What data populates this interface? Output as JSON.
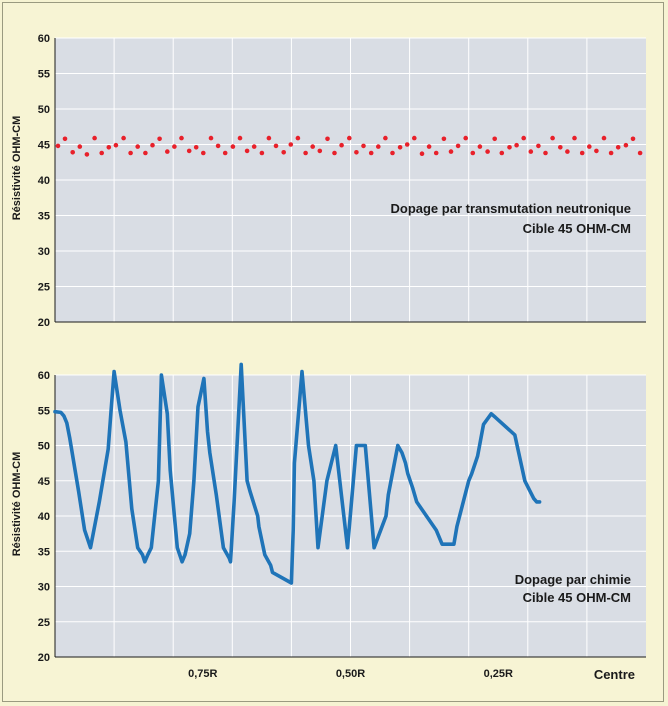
{
  "colors": {
    "panel_bg": "#d9dde4",
    "grid": "#ffffff",
    "neutron_series": "#e8202a",
    "chemistry_series": "#1f74b8",
    "page_bg": "#f6f3d2"
  },
  "chart_data": [
    {
      "type": "scatter",
      "title": "",
      "ylabel": "Résistivité OHM-CM",
      "ylim": [
        20,
        60
      ],
      "yticks": [
        20,
        25,
        30,
        35,
        40,
        45,
        50,
        55,
        60
      ],
      "xlim": [
        1.0,
        0.0
      ],
      "grid": true,
      "annotation": [
        "Dopage par transmutation neutronique",
        "Cible 45 OHM-CM"
      ],
      "annotation_position": "middle-right",
      "series": [
        {
          "x": [
            0.995,
            0.983,
            0.97,
            0.958,
            0.946,
            0.933,
            0.921,
            0.909,
            0.897,
            0.884,
            0.872,
            0.86,
            0.847,
            0.835,
            0.823,
            0.81,
            0.798,
            0.786,
            0.773,
            0.761,
            0.749,
            0.736,
            0.724,
            0.712,
            0.699,
            0.687,
            0.675,
            0.663,
            0.65,
            0.638,
            0.626,
            0.613,
            0.601,
            0.589,
            0.576,
            0.564,
            0.552,
            0.539,
            0.527,
            0.515,
            0.502,
            0.49,
            0.478,
            0.465,
            0.453,
            0.441,
            0.429,
            0.416,
            0.404,
            0.392,
            0.379,
            0.367,
            0.355,
            0.342,
            0.33,
            0.318,
            0.305,
            0.293,
            0.281,
            0.268,
            0.256,
            0.244,
            0.231,
            0.219,
            0.207,
            0.195,
            0.182,
            0.17,
            0.158,
            0.145,
            0.133,
            0.121,
            0.108,
            0.096,
            0.084,
            0.071,
            0.059,
            0.047,
            0.034,
            0.022,
            0.01
          ],
          "y": [
            44.8,
            45.8,
            43.9,
            44.7,
            43.6,
            45.9,
            43.8,
            44.6,
            44.9,
            45.9,
            43.8,
            44.7,
            43.8,
            44.9,
            45.8,
            44.0,
            44.7,
            45.9,
            44.1,
            44.6,
            43.8,
            45.9,
            44.8,
            43.8,
            44.7,
            45.9,
            44.1,
            44.7,
            43.8,
            45.9,
            44.8,
            43.9,
            45.0,
            45.9,
            43.8,
            44.7,
            44.1,
            45.8,
            43.8,
            44.9,
            45.9,
            43.9,
            44.8,
            43.8,
            44.7,
            45.9,
            43.8,
            44.6,
            45.0,
            45.9,
            43.7,
            44.7,
            43.8,
            45.8,
            44.0,
            44.8,
            45.9,
            43.8,
            44.7,
            44.0,
            45.8,
            43.8,
            44.6,
            44.9,
            45.9,
            44.0,
            44.8,
            43.8,
            45.9,
            44.6,
            44.0,
            45.9,
            43.8,
            44.7,
            44.1,
            45.9,
            43.8,
            44.6,
            44.9,
            45.8,
            43.8
          ]
        }
      ]
    },
    {
      "type": "line",
      "title": "",
      "ylabel": "Résistivité OHM-CM",
      "ylim": [
        20,
        60
      ],
      "yticks": [
        20,
        25,
        30,
        35,
        40,
        45,
        50,
        55,
        60
      ],
      "xlim": [
        1.0,
        0.0
      ],
      "xticks": [
        {
          "value": 0.75,
          "label": "0,75R"
        },
        {
          "value": 0.5,
          "label": "0,50R"
        },
        {
          "value": 0.25,
          "label": "0,25R"
        }
      ],
      "xlabel": "Centre",
      "grid": true,
      "annotation": [
        "Dopage par chimie",
        "Cible 45 OHM-CM"
      ],
      "annotation_position": "bottom-right",
      "series": [
        {
          "x": [
            1.0,
            0.99,
            0.985,
            0.98,
            0.975,
            0.96,
            0.95,
            0.94,
            0.925,
            0.91,
            0.905,
            0.9,
            0.89,
            0.88,
            0.87,
            0.86,
            0.852,
            0.848,
            0.843,
            0.837,
            0.825,
            0.82,
            0.81,
            0.805,
            0.793,
            0.785,
            0.78,
            0.772,
            0.765,
            0.758,
            0.748,
            0.742,
            0.738,
            0.727,
            0.715,
            0.705,
            0.703,
            0.697,
            0.685,
            0.675,
            0.67,
            0.657,
            0.655,
            0.645,
            0.635,
            0.632,
            0.6,
            0.597,
            0.595,
            0.582,
            0.571,
            0.562,
            0.555,
            0.54,
            0.525,
            0.505,
            0.49,
            0.475,
            0.46,
            0.44,
            0.436,
            0.42,
            0.413,
            0.407,
            0.403,
            0.395,
            0.388,
            0.355,
            0.345,
            0.34,
            0.325,
            0.32,
            0.3,
            0.295,
            0.285,
            0.275,
            0.262,
            0.255,
            0.222,
            0.205,
            0.19,
            0.185,
            0.18
          ],
          "y": [
            54.8,
            54.7,
            54.2,
            53.2,
            51.0,
            43.5,
            38.0,
            35.5,
            42.0,
            49.5,
            55.0,
            60.5,
            55.0,
            50.5,
            41.0,
            35.5,
            34.5,
            33.5,
            34.5,
            35.5,
            45.0,
            60.0,
            54.5,
            46.5,
            35.5,
            33.5,
            34.5,
            37.5,
            45.0,
            55.5,
            59.5,
            52.0,
            49.0,
            43.0,
            35.5,
            34.0,
            33.5,
            42.0,
            61.5,
            45.0,
            43.5,
            40.0,
            38.5,
            34.5,
            33.0,
            32.0,
            30.5,
            38.0,
            47.5,
            60.5,
            50.0,
            45.0,
            35.5,
            45.0,
            50.0,
            35.5,
            50.0,
            50.0,
            35.5,
            40.0,
            43.0,
            50.0,
            49.0,
            47.5,
            46.0,
            44.0,
            42.0,
            38.0,
            36.0,
            36.0,
            36.0,
            38.5,
            45.0,
            46.0,
            48.5,
            53.0,
            54.5,
            54.0,
            51.5,
            45.0,
            42.5,
            42.0,
            42.0
          ]
        }
      ]
    }
  ]
}
